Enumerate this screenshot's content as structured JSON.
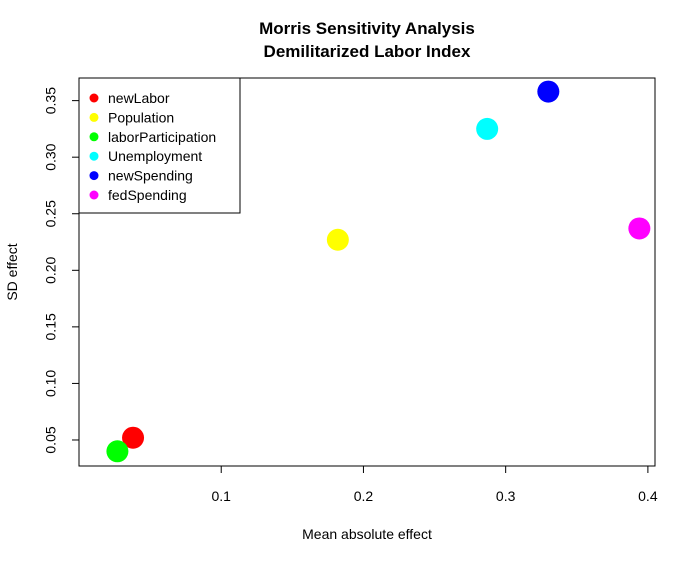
{
  "chart_data": {
    "type": "scatter",
    "title_line1": "Morris Sensitivity Analysis",
    "title_line2": "Demilitarized Labor Index",
    "xlabel": "Mean absolute effect",
    "ylabel": "SD effect",
    "xlim": [
      0.0,
      0.405
    ],
    "ylim": [
      0.027,
      0.37
    ],
    "x_ticks": [
      0.1,
      0.2,
      0.3,
      0.4
    ],
    "x_tick_labels": [
      "0.1",
      "0.2",
      "0.3",
      "0.4"
    ],
    "y_ticks": [
      0.05,
      0.1,
      0.15,
      0.2,
      0.25,
      0.3,
      0.35
    ],
    "y_tick_labels": [
      "0.05",
      "0.10",
      "0.15",
      "0.20",
      "0.25",
      "0.30",
      "0.35"
    ],
    "grid": false,
    "legend_position": "top-left",
    "series": [
      {
        "name": "newLabor",
        "color": "#ff0000",
        "x": 0.038,
        "y": 0.052
      },
      {
        "name": "Population",
        "color": "#ffff00",
        "x": 0.182,
        "y": 0.227
      },
      {
        "name": "laborParticipation",
        "color": "#00ff00",
        "x": 0.027,
        "y": 0.04
      },
      {
        "name": "Unemployment",
        "color": "#00ffff",
        "x": 0.287,
        "y": 0.325
      },
      {
        "name": "newSpending",
        "color": "#0000ff",
        "x": 0.33,
        "y": 0.358
      },
      {
        "name": "fedSpending",
        "color": "#ff00ff",
        "x": 0.394,
        "y": 0.237
      }
    ]
  }
}
